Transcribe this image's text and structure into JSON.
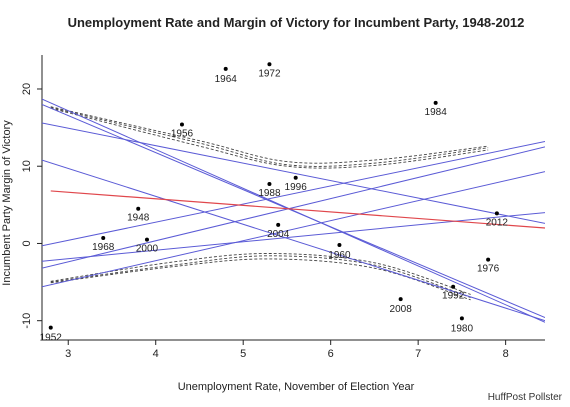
{
  "chart_data": {
    "type": "scatter",
    "title": "Unemployment Rate and Margin of Victory for Incumbent Party, 1948-2012",
    "xlabel": "Unemployment Rate, November of Election Year",
    "ylabel": "Incumbent Party Margin of Victory",
    "xlim": [
      2.7,
      8.45
    ],
    "ylim": [
      -12.5,
      24.4
    ],
    "xticks": [
      3,
      4,
      5,
      6,
      7,
      8
    ],
    "yticks": [
      -10,
      0,
      10,
      20
    ],
    "points": [
      {
        "label": "1948",
        "x": 3.8,
        "y": 4.5
      },
      {
        "label": "1952",
        "x": 2.8,
        "y": -10.9
      },
      {
        "label": "1956",
        "x": 4.3,
        "y": 15.4
      },
      {
        "label": "1960",
        "x": 6.1,
        "y": -0.2
      },
      {
        "label": "1964",
        "x": 4.8,
        "y": 22.6
      },
      {
        "label": "1968",
        "x": 3.4,
        "y": 0.7
      },
      {
        "label": "1972",
        "x": 5.3,
        "y": 23.2
      },
      {
        "label": "1976",
        "x": 7.8,
        "y": -2.1
      },
      {
        "label": "1980",
        "x": 7.5,
        "y": -9.7
      },
      {
        "label": "1984",
        "x": 7.2,
        "y": 18.2
      },
      {
        "label": "1988",
        "x": 5.3,
        "y": 7.7
      },
      {
        "label": "1992",
        "x": 7.4,
        "y": -5.6
      },
      {
        "label": "1996",
        "x": 5.6,
        "y": 8.5
      },
      {
        "label": "2000",
        "x": 3.9,
        "y": 0.5
      },
      {
        "label": "2004",
        "x": 5.4,
        "y": 2.4
      },
      {
        "label": "2008",
        "x": 6.8,
        "y": -7.2
      },
      {
        "label": "2012",
        "x": 7.9,
        "y": 3.9
      }
    ],
    "regression_line": {
      "color": "#e0474c",
      "x": [
        2.8,
        8.45
      ],
      "y": [
        6.8,
        2.0
      ]
    },
    "bootstrap_lines": {
      "color": "#5b5bd6",
      "lines": [
        {
          "x": [
            2.7,
            8.45
          ],
          "y": [
            18.7,
            -10.2
          ]
        },
        {
          "x": [
            2.7,
            8.45
          ],
          "y": [
            18.0,
            -9.6
          ]
        },
        {
          "x": [
            2.7,
            8.45
          ],
          "y": [
            15.6,
            2.6
          ]
        },
        {
          "x": [
            2.7,
            8.45
          ],
          "y": [
            10.8,
            -10.0
          ]
        },
        {
          "x": [
            2.7,
            8.45
          ],
          "y": [
            -0.3,
            13.2
          ]
        },
        {
          "x": [
            2.7,
            8.45
          ],
          "y": [
            -3.2,
            12.5
          ]
        },
        {
          "x": [
            2.7,
            8.45
          ],
          "y": [
            -5.6,
            9.3
          ]
        },
        {
          "x": [
            2.7,
            8.45
          ],
          "y": [
            -2.3,
            4.0
          ]
        }
      ]
    },
    "confidence_bands": {
      "color": "#444444",
      "upper": [
        {
          "x": [
            2.8,
            4.5,
            5.5,
            6.5,
            7.8
          ],
          "y": [
            17.6,
            13.0,
            10.2,
            10.4,
            12.4
          ]
        },
        {
          "x": [
            2.8,
            4.5,
            5.5,
            6.5,
            7.8
          ],
          "y": [
            17.5,
            12.6,
            10.0,
            10.1,
            12.1
          ]
        },
        {
          "x": [
            2.8,
            4.5,
            5.5,
            6.5,
            7.8
          ],
          "y": [
            17.7,
            13.3,
            10.6,
            10.8,
            12.6
          ]
        }
      ],
      "lower": [
        {
          "x": [
            2.8,
            4.2,
            5.3,
            6.5,
            7.6
          ],
          "y": [
            -5.0,
            -2.8,
            -1.6,
            -2.8,
            -7.0
          ]
        },
        {
          "x": [
            2.8,
            4.2,
            5.3,
            6.5,
            7.6
          ],
          "y": [
            -4.9,
            -2.4,
            -1.3,
            -2.5,
            -6.6
          ]
        },
        {
          "x": [
            2.8,
            4.2,
            5.3,
            6.5,
            7.6
          ],
          "y": [
            -5.1,
            -3.0,
            -2.0,
            -3.2,
            -7.3
          ]
        }
      ]
    },
    "grid": false,
    "legend": "none"
  },
  "footer": {
    "source": "HuffPost Pollster"
  }
}
